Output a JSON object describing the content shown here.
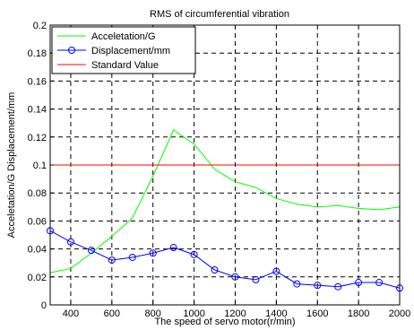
{
  "chart_data": {
    "type": "line",
    "title": "RMS of circumferential vibration",
    "xlabel": "The speed of servo motor(r/min)",
    "ylabel": "Acceletation/G  Displacement/mm",
    "xlim": [
      300,
      2000
    ],
    "ylim": [
      0,
      0.2
    ],
    "xticks": [
      400,
      600,
      800,
      1000,
      1200,
      1400,
      1600,
      1800,
      2000
    ],
    "xtick_labels": [
      "400",
      "600",
      "800",
      "1000",
      "1200",
      "1400",
      "1600",
      "1800",
      "2000"
    ],
    "yticks": [
      0,
      0.02,
      0.04,
      0.06,
      0.08,
      0.1,
      0.12,
      0.14,
      0.16,
      0.18,
      0.2
    ],
    "ytick_labels": [
      "0",
      "0.02",
      "0.04",
      "0.06",
      "0.08",
      "0.1",
      "0.12",
      "0.14",
      "0.16",
      "0.18",
      "0.2"
    ],
    "grid": true,
    "legend_position": "top-left",
    "series": [
      {
        "name": "Acceletation/G",
        "color": "#00ff00",
        "marker": "none",
        "x": [
          300,
          400,
          500,
          600,
          700,
          800,
          900,
          1000,
          1100,
          1200,
          1300,
          1400,
          1500,
          1600,
          1700,
          1800,
          1900,
          2000
        ],
        "y": [
          0.023,
          0.026,
          0.037,
          0.049,
          0.062,
          0.092,
          0.125,
          0.115,
          0.097,
          0.088,
          0.084,
          0.076,
          0.072,
          0.07,
          0.071,
          0.069,
          0.068,
          0.07
        ]
      },
      {
        "name": "Displacement/mm",
        "color": "#0000ff",
        "marker": "circle",
        "x": [
          300,
          400,
          500,
          600,
          700,
          800,
          900,
          1000,
          1100,
          1200,
          1300,
          1400,
          1500,
          1600,
          1700,
          1800,
          1900,
          2000
        ],
        "y": [
          0.053,
          0.045,
          0.039,
          0.032,
          0.034,
          0.037,
          0.041,
          0.036,
          0.025,
          0.02,
          0.018,
          0.024,
          0.015,
          0.014,
          0.013,
          0.016,
          0.016,
          0.012
        ]
      },
      {
        "name": "Standard Value",
        "color": "#ff0000",
        "marker": "none",
        "x": [
          300,
          2000
        ],
        "y": [
          0.1,
          0.1
        ]
      }
    ]
  }
}
